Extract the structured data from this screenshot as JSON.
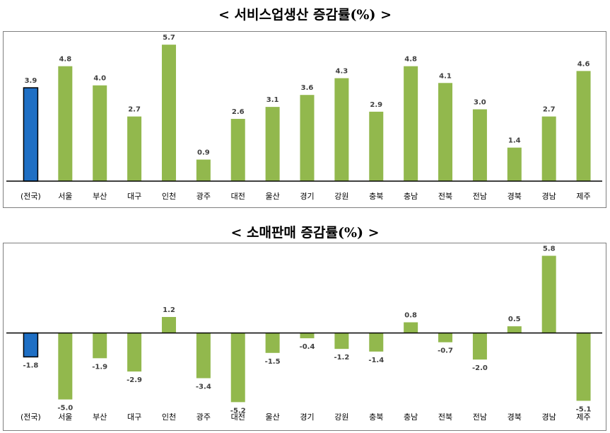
{
  "chart_data": [
    {
      "type": "bar",
      "title": "< 서비스업생산 증감률(%) >",
      "categories": [
        "(전국)",
        "서울",
        "부산",
        "대구",
        "인천",
        "광주",
        "대전",
        "울산",
        "경기",
        "강원",
        "충북",
        "충남",
        "전북",
        "전남",
        "경북",
        "경남",
        "제주"
      ],
      "values": [
        3.9,
        4.8,
        4.0,
        2.7,
        5.7,
        0.9,
        2.6,
        3.1,
        3.6,
        4.3,
        2.9,
        4.8,
        4.1,
        3.0,
        1.4,
        2.7,
        4.6
      ],
      "highlight_index": 0,
      "colors": {
        "highlight": "#1f6fc4",
        "bar": "#92b84d",
        "highlight_edge": "#000000"
      },
      "ylim": [
        0,
        6.0
      ],
      "grid": false
    },
    {
      "type": "bar",
      "title": "< 소매판매 증감률(%) >",
      "categories": [
        "(전국)",
        "서울",
        "부산",
        "대구",
        "인천",
        "광주",
        "대전",
        "울산",
        "경기",
        "강원",
        "충북",
        "충남",
        "전북",
        "전남",
        "경북",
        "경남",
        "제주"
      ],
      "values": [
        -1.8,
        -5.0,
        -1.9,
        -2.9,
        1.2,
        -3.4,
        -5.2,
        -1.5,
        -0.4,
        -1.2,
        -1.4,
        0.8,
        -0.7,
        -2.0,
        0.5,
        5.8,
        -5.1
      ],
      "highlight_index": 0,
      "colors": {
        "highlight": "#1f6fc4",
        "bar": "#92b84d",
        "highlight_edge": "#000000"
      },
      "ylim": [
        -5.5,
        6.2
      ],
      "grid": false
    }
  ]
}
